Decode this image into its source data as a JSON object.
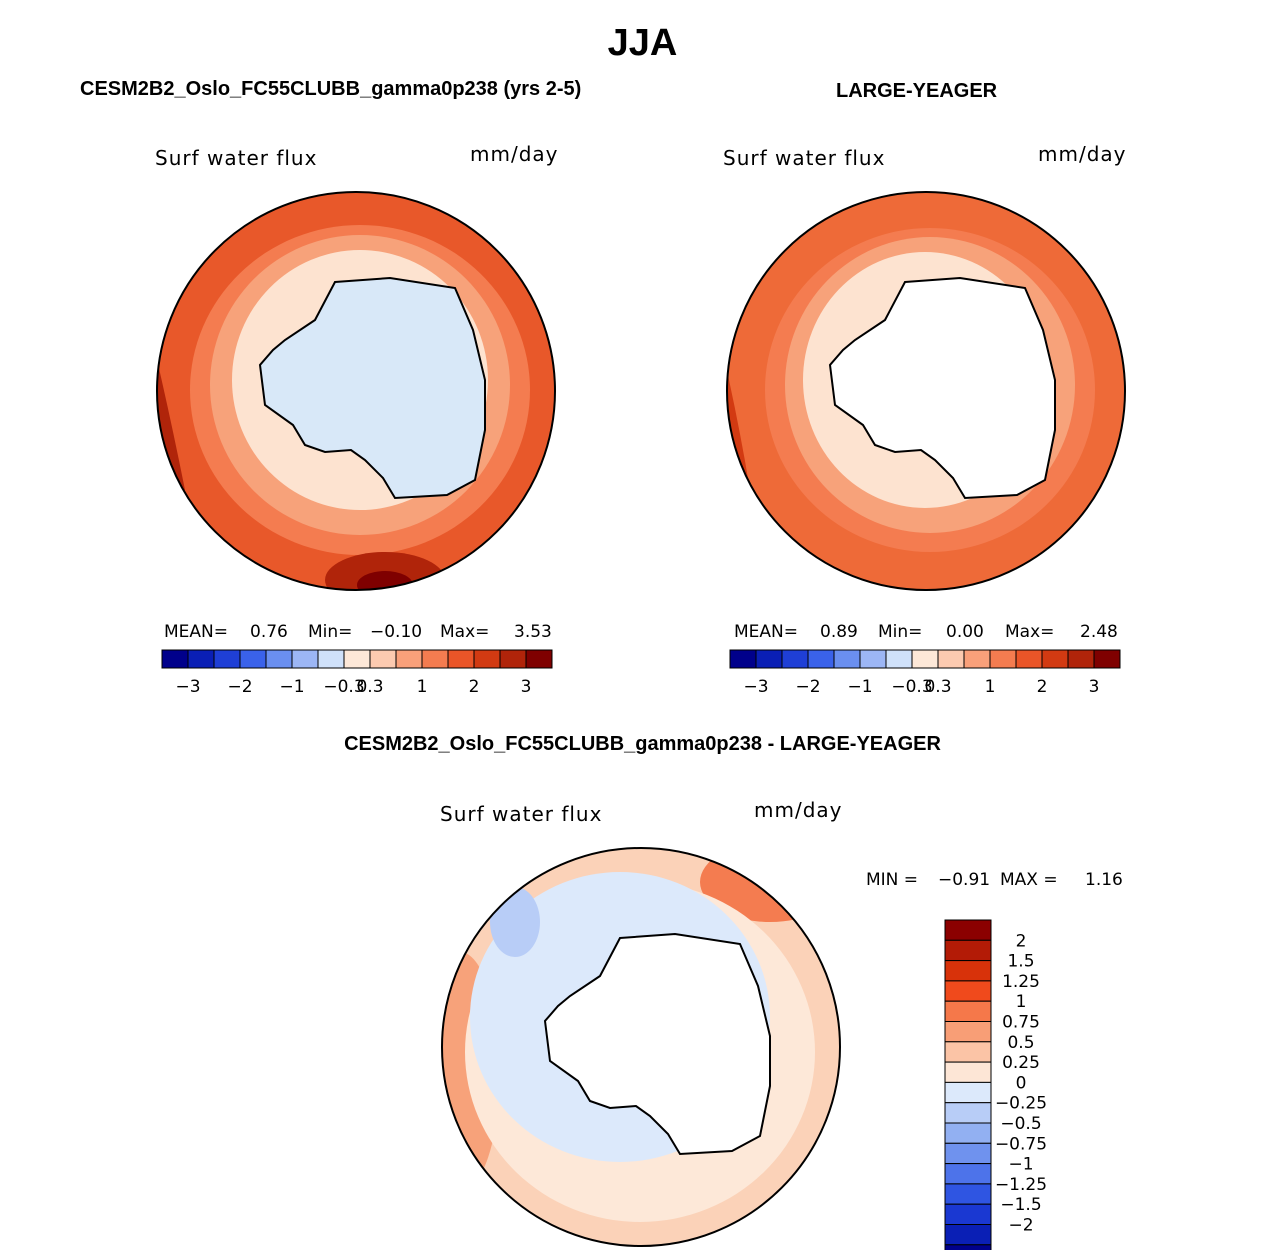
{
  "page": {
    "season": "JJA",
    "left_panel_title": "CESM2B2_Oslo_FC55CLUBB_gamma0p238 (yrs 2-5)",
    "right_panel_title": "LARGE-YEAGER",
    "diff_panel_title": "CESM2B2_Oslo_FC55CLUBB_gamma0p238 - LARGE-YEAGER"
  },
  "panels": {
    "left": {
      "variable": "Surf water flux",
      "units": "mm/day",
      "stats": {
        "mean_label": "MEAN=",
        "mean": "0.76",
        "min_label": "Min=",
        "min": "−0.10",
        "max_label": "Max=",
        "max": "3.53"
      }
    },
    "right": {
      "variable": "Surf water flux",
      "units": "mm/day",
      "stats": {
        "mean_label": "MEAN=",
        "mean": "0.89",
        "min_label": "Min=",
        "min": "0.00",
        "max_label": "Max=",
        "max": "2.48"
      }
    },
    "diff": {
      "variable": "Surf water flux",
      "units": "mm/day",
      "stats": {
        "min_label": "MIN =",
        "min": "−0.91",
        "max_label": "MAX =",
        "max": "1.16"
      }
    }
  },
  "colorbar_main": {
    "colors": [
      "#00008b",
      "#0a1fb5",
      "#1f3fd6",
      "#3a62ea",
      "#6a8ff0",
      "#9cb6f5",
      "#cfe1fa",
      "#fde8d8",
      "#fccab0",
      "#f9a07a",
      "#f47c50",
      "#ea5528",
      "#d23a12",
      "#b0240a",
      "#7f0000"
    ],
    "tick_labels": [
      "−3",
      "−2",
      "−1",
      "−0.3",
      "0.3",
      "1",
      "2",
      "3"
    ]
  },
  "colorbar_diff": {
    "colors": [
      "#8b0000",
      "#b31b06",
      "#d8320a",
      "#f04a1c",
      "#f5784a",
      "#f89e76",
      "#fbc4a6",
      "#fde6d6",
      "#dce9fb",
      "#b8cdf7",
      "#92b0f2",
      "#6f92ee",
      "#4d73ea",
      "#2f55e2",
      "#1a38d2",
      "#0a1fb5",
      "#00008b"
    ],
    "tick_labels": [
      "2",
      "1.5",
      "1.25",
      "1",
      "0.75",
      "0.5",
      "0.25",
      "0",
      "−0.25",
      "−0.5",
      "−0.75",
      "−1",
      "−1.25",
      "−1.5",
      "−2"
    ]
  },
  "map_colors": {
    "ice_fill_model": "#d8e8f8",
    "land_fill_obs": "#ffffff",
    "ring_outer_model": "#e8582a",
    "ring_outer_obs": "#ee6a38",
    "ring_mid": "#f7a27a",
    "ring_inner": "#fde3d0",
    "diff_outer": "#fbd2b8",
    "diff_inner": "#fde8d8",
    "diff_neg": "#dce9fb",
    "diff_neg_strong": "#b8cdf7"
  }
}
